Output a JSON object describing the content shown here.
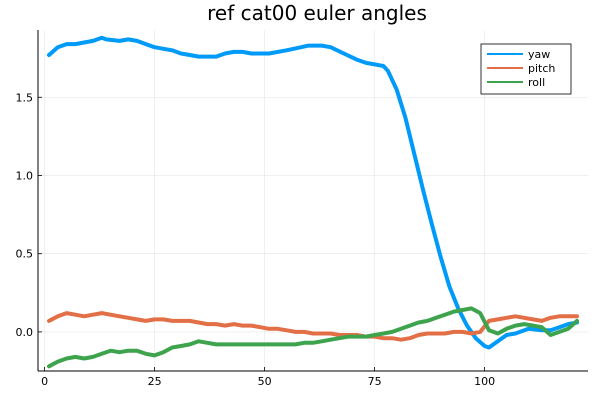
{
  "chart_data": {
    "type": "line",
    "title": "ref cat00 euler angles",
    "xlabel": "",
    "ylabel": "",
    "xlim": [
      -1.5,
      123.5
    ],
    "ylim": [
      -0.25,
      1.93
    ],
    "xticks": [
      0,
      25,
      50,
      75,
      100
    ],
    "yticks": [
      0.0,
      0.5,
      1.0,
      1.5
    ],
    "xtick_labels": [
      "0",
      "25",
      "50",
      "75",
      "100"
    ],
    "ytick_labels": [
      "0.0",
      "0.5",
      "1.0",
      "1.5"
    ],
    "grid": true,
    "legend_position": "top-right",
    "series": [
      {
        "name": "yaw",
        "color": "#009af9",
        "x": [
          1,
          3,
          5,
          7,
          9,
          11,
          13,
          14,
          17,
          19,
          21,
          23,
          25,
          27,
          29,
          31,
          33,
          35,
          37,
          39,
          41,
          43,
          45,
          47,
          49,
          51,
          55,
          60,
          63,
          65,
          68,
          71,
          73,
          75,
          77,
          78,
          80,
          82,
          84,
          86,
          88,
          90,
          92,
          94,
          96,
          98,
          100,
          101,
          103,
          105,
          107,
          110,
          113,
          115,
          117,
          119,
          121
        ],
        "values": [
          1.77,
          1.82,
          1.84,
          1.84,
          1.85,
          1.86,
          1.88,
          1.87,
          1.86,
          1.87,
          1.86,
          1.84,
          1.82,
          1.81,
          1.8,
          1.78,
          1.77,
          1.76,
          1.76,
          1.76,
          1.78,
          1.79,
          1.79,
          1.78,
          1.78,
          1.78,
          1.8,
          1.83,
          1.83,
          1.82,
          1.78,
          1.74,
          1.72,
          1.71,
          1.7,
          1.67,
          1.55,
          1.37,
          1.14,
          0.91,
          0.69,
          0.48,
          0.29,
          0.15,
          0.04,
          -0.04,
          -0.09,
          -0.1,
          -0.06,
          -0.02,
          -0.01,
          0.02,
          0.01,
          0.01,
          0.03,
          0.05,
          0.06
        ]
      },
      {
        "name": "pitch",
        "color": "#e26f46",
        "x": [
          1,
          3,
          5,
          7,
          9,
          11,
          13,
          15,
          17,
          19,
          21,
          23,
          25,
          27,
          29,
          31,
          33,
          35,
          37,
          39,
          41,
          43,
          45,
          47,
          49,
          51,
          53,
          55,
          57,
          59,
          61,
          63,
          65,
          67,
          69,
          71,
          73,
          75,
          77,
          79,
          81,
          83,
          85,
          87,
          89,
          91,
          93,
          95,
          97,
          99,
          101,
          103,
          105,
          107,
          109,
          111,
          113,
          115,
          117,
          119,
          121
        ],
        "values": [
          0.07,
          0.1,
          0.12,
          0.11,
          0.1,
          0.11,
          0.12,
          0.11,
          0.1,
          0.09,
          0.08,
          0.07,
          0.08,
          0.08,
          0.07,
          0.07,
          0.07,
          0.06,
          0.05,
          0.05,
          0.04,
          0.05,
          0.04,
          0.04,
          0.03,
          0.02,
          0.02,
          0.01,
          0.0,
          0.0,
          -0.01,
          -0.01,
          -0.01,
          -0.02,
          -0.02,
          -0.02,
          -0.03,
          -0.03,
          -0.04,
          -0.04,
          -0.05,
          -0.04,
          -0.02,
          -0.01,
          -0.01,
          -0.01,
          0.0,
          0.0,
          -0.01,
          0.0,
          0.07,
          0.08,
          0.09,
          0.1,
          0.09,
          0.08,
          0.07,
          0.09,
          0.1,
          0.1,
          0.1
        ]
      },
      {
        "name": "roll",
        "color": "#3da44d",
        "x": [
          1,
          3,
          5,
          7,
          9,
          11,
          13,
          15,
          17,
          19,
          21,
          23,
          25,
          27,
          29,
          31,
          33,
          35,
          37,
          39,
          41,
          43,
          45,
          47,
          49,
          51,
          53,
          55,
          57,
          59,
          61,
          63,
          65,
          67,
          69,
          71,
          73,
          75,
          77,
          79,
          81,
          83,
          85,
          87,
          89,
          91,
          93,
          95,
          97,
          99,
          101,
          103,
          105,
          107,
          109,
          111,
          113,
          115,
          117,
          119,
          121
        ],
        "values": [
          -0.22,
          -0.19,
          -0.17,
          -0.16,
          -0.17,
          -0.16,
          -0.14,
          -0.12,
          -0.13,
          -0.12,
          -0.12,
          -0.14,
          -0.15,
          -0.13,
          -0.1,
          -0.09,
          -0.08,
          -0.06,
          -0.07,
          -0.08,
          -0.08,
          -0.08,
          -0.08,
          -0.08,
          -0.08,
          -0.08,
          -0.08,
          -0.08,
          -0.08,
          -0.07,
          -0.07,
          -0.06,
          -0.05,
          -0.04,
          -0.03,
          -0.03,
          -0.03,
          -0.02,
          -0.01,
          0.0,
          0.02,
          0.04,
          0.06,
          0.07,
          0.09,
          0.11,
          0.13,
          0.14,
          0.15,
          0.12,
          0.01,
          -0.01,
          0.02,
          0.04,
          0.05,
          0.04,
          0.03,
          -0.02,
          0.0,
          0.02,
          0.07
        ]
      }
    ]
  }
}
